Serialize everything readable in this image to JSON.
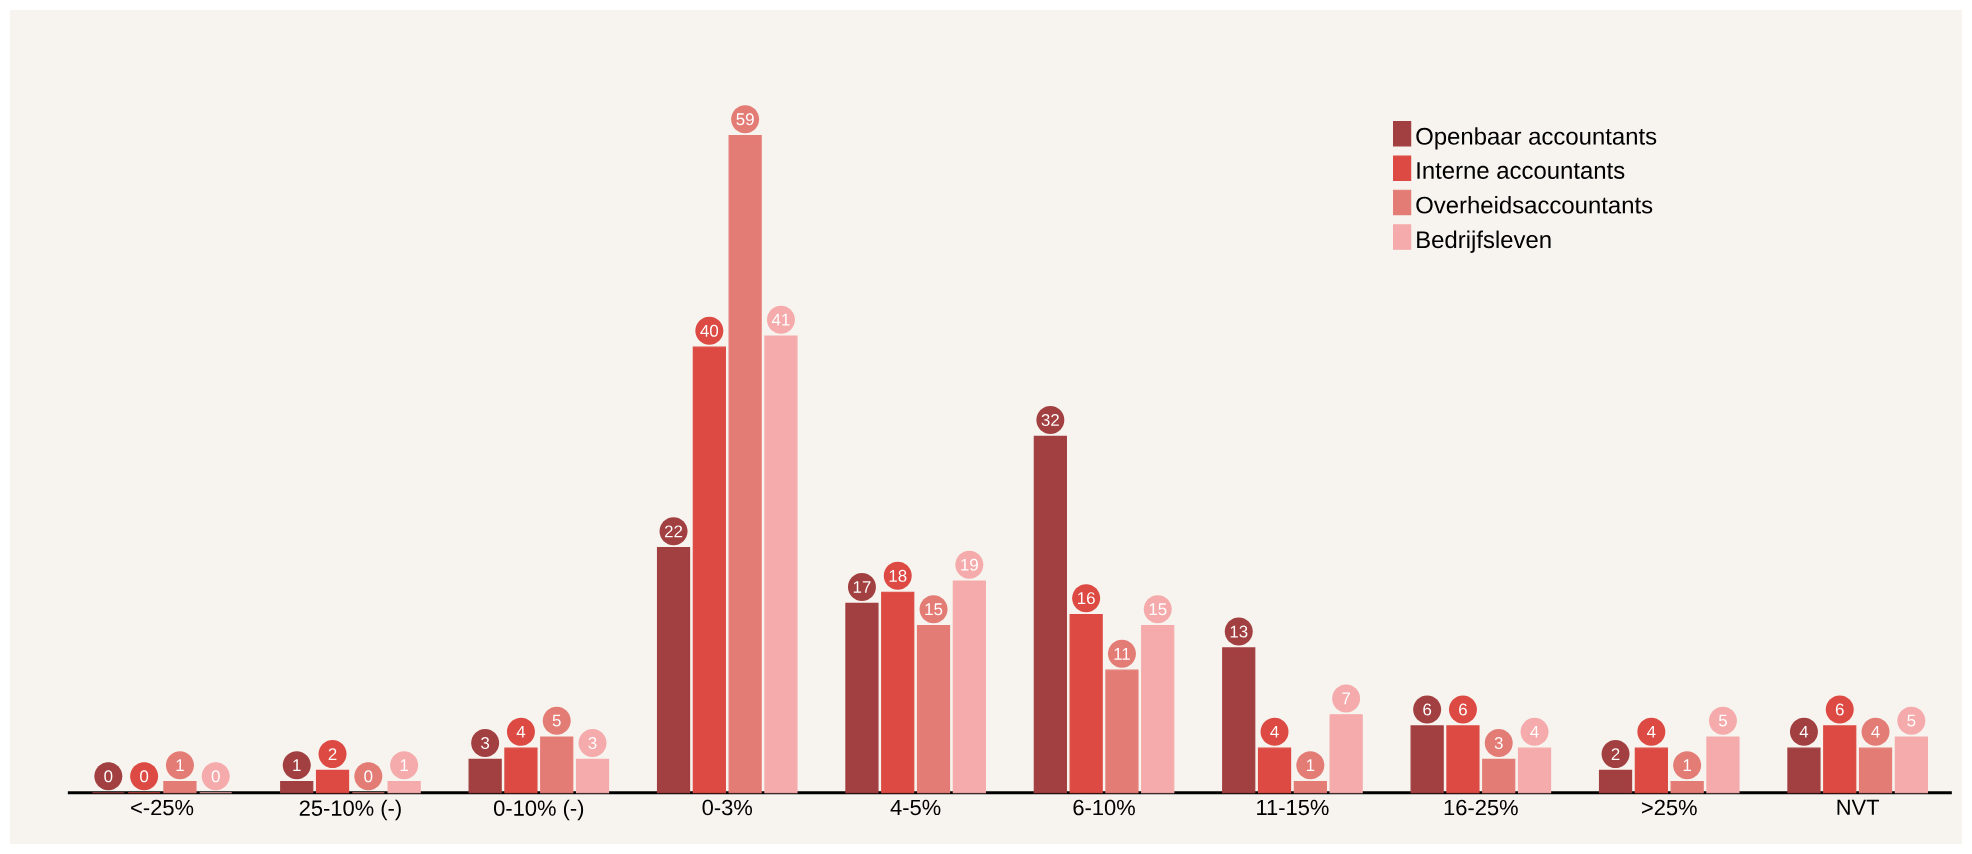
{
  "chart_data": {
    "type": "bar",
    "categories": [
      "<-25%",
      "25-10% (-)",
      "0-10% (-)",
      "0-3%",
      "4-5%",
      "6-10%",
      "11-15%",
      "16-25%",
      ">25%",
      "NVT"
    ],
    "series": [
      {
        "name": "Openbaar accountants",
        "color": "#a23f40",
        "values": [
          0,
          1,
          3,
          22,
          17,
          32,
          13,
          6,
          2,
          4
        ]
      },
      {
        "name": "Interne accountants",
        "color": "#dc4a43",
        "values": [
          0,
          2,
          4,
          40,
          18,
          16,
          4,
          6,
          4,
          6
        ]
      },
      {
        "name": "Overheidsaccountants",
        "color": "#e47c76",
        "values": [
          1,
          0,
          5,
          59,
          15,
          11,
          1,
          3,
          1,
          4
        ]
      },
      {
        "name": "Bedrijfsleven",
        "color": "#f5abab",
        "values": [
          0,
          1,
          3,
          41,
          19,
          15,
          7,
          4,
          5,
          5
        ]
      }
    ],
    "data_labels": true,
    "legend": "top right"
  }
}
